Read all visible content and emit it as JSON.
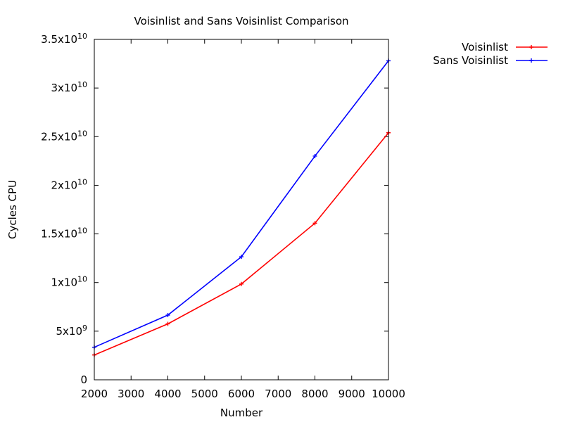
{
  "chart_data": {
    "type": "line",
    "title": "Voisinlist and Sans Voisinlist Comparison",
    "xlabel": "Number",
    "ylabel": "Cycles CPU",
    "x": [
      2000,
      4000,
      6000,
      8000,
      10000
    ],
    "xlim": [
      2000,
      10000
    ],
    "ylim": [
      0,
      35000000000
    ],
    "x_ticks": [
      2000,
      3000,
      4000,
      5000,
      6000,
      7000,
      8000,
      9000,
      10000
    ],
    "x_tick_labels": [
      "2000",
      "3000",
      "4000",
      "5000",
      "6000",
      "7000",
      "8000",
      "9000",
      "10000"
    ],
    "y_ticks": [
      0,
      5000000000,
      10000000000,
      15000000000,
      20000000000,
      25000000000,
      30000000000,
      35000000000
    ],
    "y_tick_labels": [
      {
        "mantissa": "0",
        "exp": ""
      },
      {
        "mantissa": "5x10",
        "exp": "9"
      },
      {
        "mantissa": "1x10",
        "exp": "10"
      },
      {
        "mantissa": "1.5x10",
        "exp": "10"
      },
      {
        "mantissa": "2x10",
        "exp": "10"
      },
      {
        "mantissa": "2.5x10",
        "exp": "10"
      },
      {
        "mantissa": "3x10",
        "exp": "10"
      },
      {
        "mantissa": "3.5x10",
        "exp": "10"
      }
    ],
    "grid": false,
    "legend_position": "outside-top-right",
    "series": [
      {
        "name": "Voisinlist",
        "color": "#ff0000",
        "values": [
          2550000000,
          5750000000,
          9850000000,
          16100000000,
          25400000000
        ]
      },
      {
        "name": "Sans Voisinlist",
        "color": "#0000ff",
        "values": [
          3350000000,
          6650000000,
          12650000000,
          23000000000,
          32800000000
        ]
      }
    ]
  }
}
